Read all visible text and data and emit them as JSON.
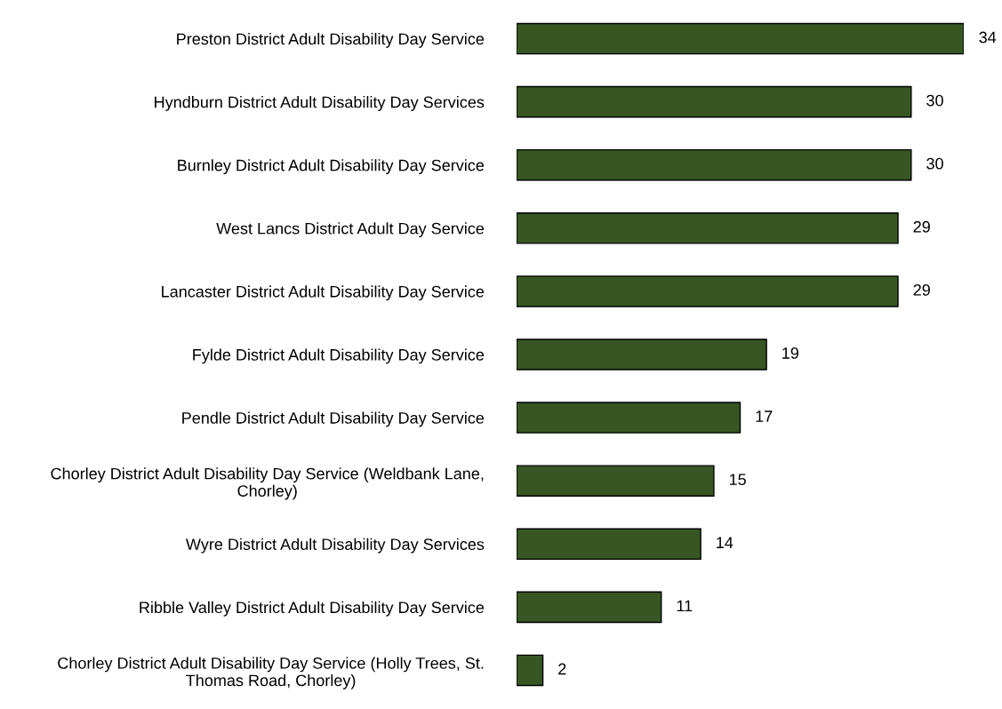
{
  "chart_data": {
    "type": "bar",
    "orientation": "horizontal",
    "categories": [
      "Preston District Adult Disability Day Service",
      "Hyndburn District Adult Disability Day Services",
      "Burnley District Adult Disability Day Service",
      "West Lancs District Adult Day Service",
      "Lancaster District Adult Disability Day Service",
      "Fylde District Adult Disability Day Service",
      "Pendle District Adult Disability Day Service",
      "Chorley District Adult Disability Day Service (Weldbank Lane, Chorley)",
      "Wyre District Adult Disability Day Services",
      "Ribble Valley District Adult Disability Day Service",
      "Chorley District Adult Disability Day Service (Holly Trees, St. Thomas Road, Chorley)"
    ],
    "values": [
      34,
      30,
      30,
      29,
      29,
      19,
      17,
      15,
      14,
      11,
      2
    ],
    "color": "#375623",
    "data_labels": true,
    "grid": false,
    "legend": false
  }
}
